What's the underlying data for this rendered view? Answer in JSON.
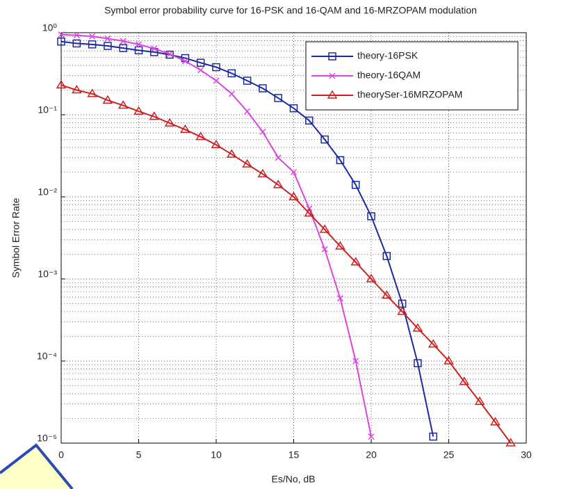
{
  "chart_data": {
    "type": "line",
    "title": "Symbol error probability curve for 16-PSK and 16-QAM and 16-MRZOPAM modulation",
    "xlabel": "Es/No, dB",
    "ylabel": "Symbol Error Rate",
    "xlim": [
      0,
      30
    ],
    "xticks": [
      0,
      5,
      10,
      15,
      20,
      25,
      30
    ],
    "ylim": [
      1e-05,
      1
    ],
    "yticks": [
      {
        "value": 1e-05,
        "label": "10⁻⁵"
      },
      {
        "value": 0.0001,
        "label": "10⁻⁴"
      },
      {
        "value": 0.001,
        "label": "10⁻³"
      },
      {
        "value": 0.01,
        "label": "10⁻²"
      },
      {
        "value": 0.1,
        "label": "10⁻¹"
      },
      {
        "value": 1,
        "label": "10⁰"
      }
    ],
    "log_y": true,
    "grid": true,
    "minor_grid": true,
    "legend": "upper right",
    "series": [
      {
        "name": "theory-16PSK",
        "color": "#1a2a9e",
        "marker": "square",
        "x": [
          0,
          1,
          2,
          3,
          4,
          5,
          6,
          7,
          8,
          9,
          10,
          11,
          12,
          13,
          14,
          15,
          16,
          17,
          18,
          19,
          20,
          21,
          22,
          23,
          24
        ],
        "values": [
          0.78,
          0.74,
          0.72,
          0.69,
          0.65,
          0.61,
          0.58,
          0.54,
          0.49,
          0.43,
          0.38,
          0.32,
          0.26,
          0.21,
          0.16,
          0.12,
          0.085,
          0.05,
          0.028,
          0.014,
          0.0058,
          0.0019,
          0.0005,
          9.4e-05,
          1.2e-05
        ]
      },
      {
        "name": "theory-16QAM",
        "color": "#dd44dd",
        "marker": "x",
        "x": [
          0,
          1,
          2,
          3,
          4,
          5,
          6,
          7,
          8,
          9,
          10,
          11,
          12,
          13,
          14,
          15,
          16,
          17,
          18,
          19,
          20
        ],
        "values": [
          0.95,
          0.93,
          0.9,
          0.85,
          0.79,
          0.72,
          0.64,
          0.55,
          0.45,
          0.35,
          0.26,
          0.18,
          0.11,
          0.062,
          0.03,
          0.02,
          0.0072,
          0.0023,
          0.00058,
          0.0001,
          1.2e-05
        ]
      },
      {
        "name": "theorySer-16MRZOPAM",
        "color": "#cc2020",
        "marker": "triangle",
        "x": [
          0,
          1,
          2,
          3,
          4,
          5,
          6,
          7,
          8,
          9,
          10,
          11,
          12,
          13,
          14,
          15,
          16,
          17,
          18,
          19,
          20,
          21,
          22,
          23,
          24,
          25,
          26,
          27,
          28,
          29
        ],
        "values": [
          0.23,
          0.2,
          0.18,
          0.15,
          0.13,
          0.11,
          0.095,
          0.079,
          0.066,
          0.054,
          0.043,
          0.033,
          0.025,
          0.019,
          0.014,
          0.01,
          0.0063,
          0.004,
          0.0025,
          0.0016,
          0.001,
          0.00063,
          0.0004,
          0.00025,
          0.00016,
          0.0001,
          5.6e-05,
          3.2e-05,
          1.8e-05,
          1e-05
        ]
      }
    ]
  }
}
